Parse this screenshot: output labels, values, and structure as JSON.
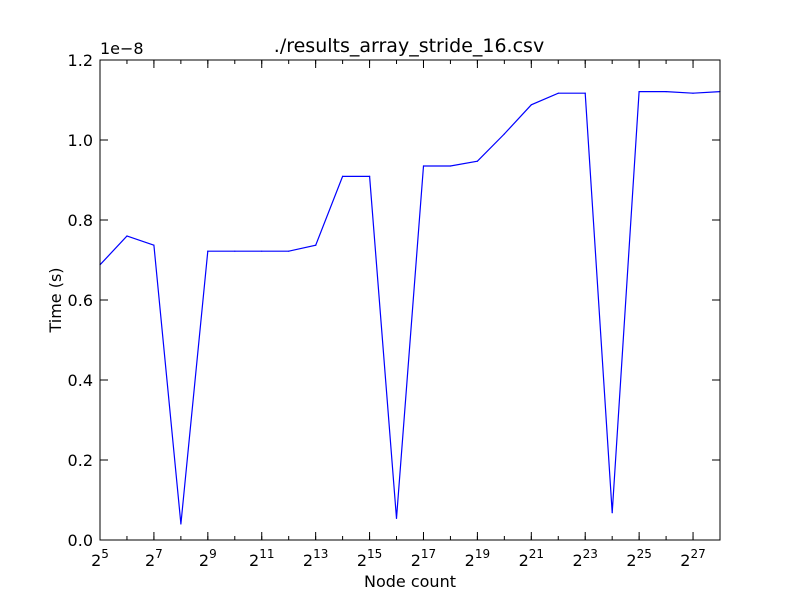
{
  "chart_data": {
    "type": "line",
    "title": "./results_array_stride_16.csv",
    "xlabel": "Node count",
    "ylabel": "Time (s)",
    "y_offset_text": "1e−8",
    "x_scale": "log2",
    "x_ticks": [
      {
        "base": "2",
        "exp": "5",
        "value": 32
      },
      {
        "base": "2",
        "exp": "7",
        "value": 128
      },
      {
        "base": "2",
        "exp": "9",
        "value": 512
      },
      {
        "base": "2",
        "exp": "11",
        "value": 2048
      },
      {
        "base": "2",
        "exp": "13",
        "value": 8192
      },
      {
        "base": "2",
        "exp": "15",
        "value": 32768
      },
      {
        "base": "2",
        "exp": "17",
        "value": 131072
      },
      {
        "base": "2",
        "exp": "19",
        "value": 524288
      },
      {
        "base": "2",
        "exp": "21",
        "value": 2097152
      },
      {
        "base": "2",
        "exp": "23",
        "value": 8388608
      },
      {
        "base": "2",
        "exp": "25",
        "value": 33554432
      },
      {
        "base": "2",
        "exp": "27",
        "value": 134217728
      }
    ],
    "y_ticks": [
      "0.0",
      "0.2",
      "0.4",
      "0.6",
      "0.8",
      "1.0",
      "1.2"
    ],
    "xlim": [
      32,
      268435456
    ],
    "ylim": [
      0,
      1.2e-08
    ],
    "grid": false,
    "series": [
      {
        "color": "#0000ff",
        "x": [
          32,
          64,
          128,
          256,
          512,
          1024,
          2048,
          4096,
          8192,
          16384,
          32768,
          65536,
          131072,
          262144,
          524288,
          1048576,
          2097152,
          4194304,
          8388608,
          16777216,
          33554432,
          67108864,
          134217728,
          268435456
        ],
        "y": [
          6.88e-09,
          7.6e-09,
          7.37e-09,
          4e-10,
          7.22e-09,
          7.22e-09,
          7.22e-09,
          7.22e-09,
          7.37e-09,
          9.09e-09,
          9.09e-09,
          5.4e-10,
          9.35e-09,
          9.35e-09,
          9.47e-09,
          1.015e-08,
          1.088e-08,
          1.117e-08,
          1.117e-08,
          6.8e-10,
          1.121e-08,
          1.121e-08,
          1.117e-08,
          1.121e-08
        ]
      }
    ]
  }
}
